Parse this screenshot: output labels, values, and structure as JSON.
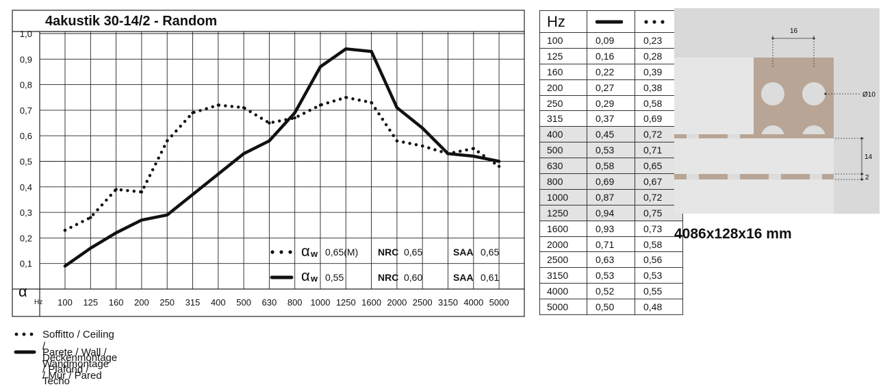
{
  "chart_data": {
    "type": "line",
    "title": "4akustik 30-14/2 - Random",
    "ylabel": "α",
    "xlabel": "Hz",
    "ylim": [
      0,
      1
    ],
    "grid": true,
    "categories": [
      "100",
      "125",
      "160",
      "200",
      "250",
      "315",
      "400",
      "500",
      "630",
      "800",
      "1000",
      "1250",
      "1600",
      "2000",
      "2500",
      "3150",
      "4000",
      "5000"
    ],
    "yticks": [
      "1,0",
      "0,9",
      "0,8",
      "0,7",
      "0,6",
      "0,5",
      "0,4",
      "0,3",
      "0,2",
      "0,1"
    ],
    "ytick_values": [
      1.0,
      0.9,
      0.8,
      0.7,
      0.6,
      0.5,
      0.4,
      0.3,
      0.2,
      0.1
    ],
    "series": [
      {
        "key": "wall",
        "style": "solid",
        "values": [
          0.09,
          0.16,
          0.22,
          0.27,
          0.29,
          0.37,
          0.45,
          0.53,
          0.58,
          0.69,
          0.87,
          0.94,
          0.93,
          0.71,
          0.63,
          0.53,
          0.52,
          0.5
        ]
      },
      {
        "key": "ceiling",
        "style": "dotted",
        "values": [
          0.23,
          0.28,
          0.39,
          0.38,
          0.58,
          0.69,
          0.72,
          0.71,
          0.65,
          0.67,
          0.72,
          0.75,
          0.73,
          0.58,
          0.56,
          0.53,
          0.55,
          0.48
        ]
      }
    ],
    "legend": [
      {
        "style": "dotted",
        "alpha_sym": "α",
        "alpha_sub": "w",
        "alpha_val": "0,65(M)",
        "nrc_label": "NRC",
        "nrc_val": "0,65",
        "saa_label": "SAA",
        "saa_val": "0,65"
      },
      {
        "style": "solid",
        "alpha_sym": "α",
        "alpha_sub": "w",
        "alpha_val": "0,55",
        "nrc_label": "NRC",
        "nrc_val": "0,60",
        "saa_label": "SAA",
        "saa_val": "0,61"
      }
    ]
  },
  "table": {
    "header_hz": "Hz",
    "rows": [
      {
        "hz": "100",
        "solid": "0,09",
        "dotted": "0,23",
        "shade": false
      },
      {
        "hz": "125",
        "solid": "0,16",
        "dotted": "0,28",
        "shade": false
      },
      {
        "hz": "160",
        "solid": "0,22",
        "dotted": "0,39",
        "shade": false
      },
      {
        "hz": "200",
        "solid": "0,27",
        "dotted": "0,38",
        "shade": false
      },
      {
        "hz": "250",
        "solid": "0,29",
        "dotted": "0,58",
        "shade": false
      },
      {
        "hz": "315",
        "solid": "0,37",
        "dotted": "0,69",
        "shade": false
      },
      {
        "hz": "400",
        "solid": "0,45",
        "dotted": "0,72",
        "shade": true
      },
      {
        "hz": "500",
        "solid": "0,53",
        "dotted": "0,71",
        "shade": true
      },
      {
        "hz": "630",
        "solid": "0,58",
        "dotted": "0,65",
        "shade": true
      },
      {
        "hz": "800",
        "solid": "0,69",
        "dotted": "0,67",
        "shade": true
      },
      {
        "hz": "1000",
        "solid": "0,87",
        "dotted": "0,72",
        "shade": true
      },
      {
        "hz": "1250",
        "solid": "0,94",
        "dotted": "0,75",
        "shade": true
      },
      {
        "hz": "1600",
        "solid": "0,93",
        "dotted": "0,73",
        "shade": false
      },
      {
        "hz": "2000",
        "solid": "0,71",
        "dotted": "0,58",
        "shade": false
      },
      {
        "hz": "2500",
        "solid": "0,63",
        "dotted": "0,56",
        "shade": false
      },
      {
        "hz": "3150",
        "solid": "0,53",
        "dotted": "0,53",
        "shade": false
      },
      {
        "hz": "4000",
        "solid": "0,52",
        "dotted": "0,55",
        "shade": false
      },
      {
        "hz": "5000",
        "solid": "0,50",
        "dotted": "0,48",
        "shade": false
      }
    ]
  },
  "panel": {
    "dim_pitch": "16",
    "dim_diameter": "Ø10",
    "dim_height": "14",
    "dim_gap": "2",
    "colors": {
      "background": "#d9d9d9",
      "panel": "#e6e6e6",
      "wood": "#b9a595",
      "hole": "#dcdcdc"
    }
  },
  "product_size": "4086x128x16 mm",
  "bottom_legend": {
    "ceiling_label": "Soffitto / Ceiling / Deckenmontage / Plafond / Techo",
    "wall_label": "Parete / Wall / Wandmontage / Mur / Pared"
  }
}
